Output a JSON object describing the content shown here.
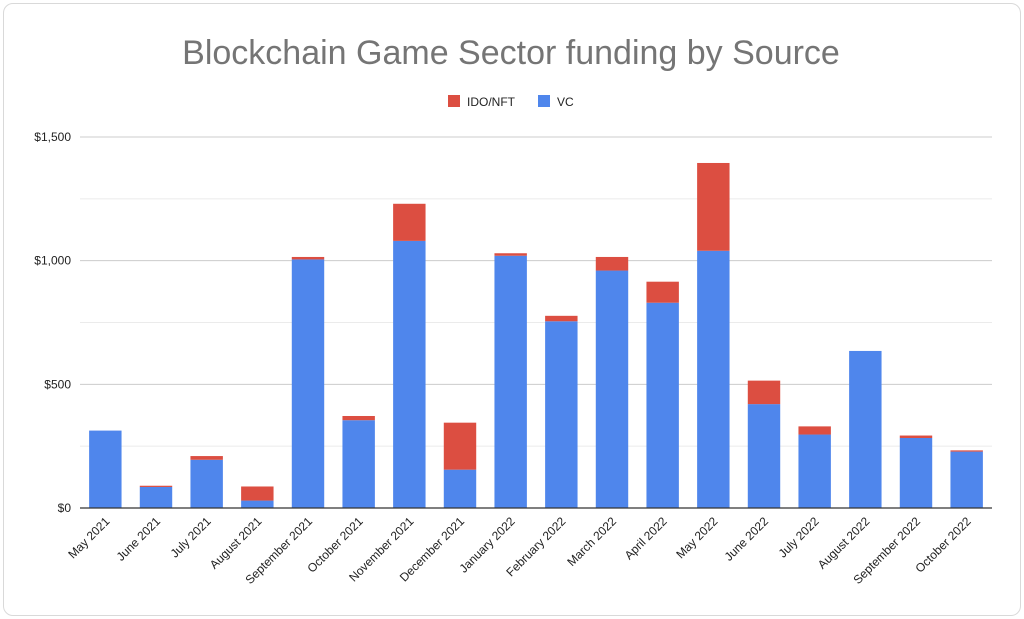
{
  "chart_data": {
    "type": "bar",
    "stacked": true,
    "title": "Blockchain Game Sector funding by Source",
    "xlabel": "",
    "ylabel": "",
    "ylim": [
      0,
      1500
    ],
    "yticks": [
      0,
      500,
      1000,
      1500
    ],
    "ytick_labels": [
      "$0",
      "$500",
      "$1,000",
      "$1,500"
    ],
    "grid": true,
    "legend_position": "top",
    "categories": [
      "May 2021",
      "June 2021",
      "July 2021",
      "August 2021",
      "September 2021",
      "October 2021",
      "November 2021",
      "December 2021",
      "January 2022",
      "February 2022",
      "March 2022",
      "April 2022",
      "May 2022",
      "June 2022",
      "July 2022",
      "August 2022",
      "September 2022",
      "October 2022"
    ],
    "series": [
      {
        "name": "VC",
        "color": "#4f86ec",
        "values": [
          313,
          85,
          195,
          30,
          1005,
          355,
          1080,
          155,
          1020,
          755,
          960,
          830,
          1040,
          420,
          297,
          635,
          283,
          228
        ]
      },
      {
        "name": "IDO/NFT",
        "color": "#dc4e41",
        "values": [
          0,
          5,
          15,
          57,
          10,
          17,
          150,
          190,
          10,
          22,
          55,
          85,
          355,
          95,
          33,
          0,
          10,
          5
        ]
      }
    ],
    "legend_order": [
      "IDO/NFT",
      "VC"
    ]
  }
}
